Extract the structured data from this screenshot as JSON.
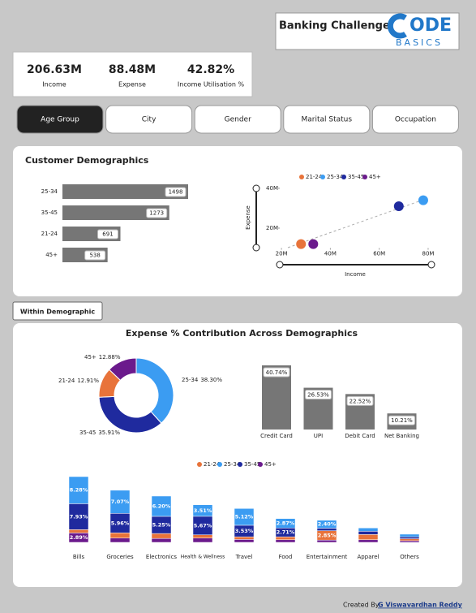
{
  "header": {
    "title": "Banking Challenge",
    "logo": "ODE",
    "logo_sub": "BASICS"
  },
  "kpis": [
    {
      "value": "206.63M",
      "label": "Income"
    },
    {
      "value": "88.48M",
      "label": "Expense"
    },
    {
      "value": "42.82%",
      "label": "Income Utilisation %"
    }
  ],
  "tabs": [
    "Age Group",
    "City",
    "Gender",
    "Marital Status",
    "Occupation"
  ],
  "button": "Within Demographic",
  "footer": {
    "text": "Created By:",
    "author": "G Viswavardhan Reddy"
  },
  "chart_data": [
    {
      "type": "hbar",
      "title": "Customer Demographics",
      "categories": [
        "25-34",
        "35-45",
        "21-24",
        "45+"
      ],
      "values": [
        1498,
        1273,
        691,
        538
      ],
      "color": "#767676"
    },
    {
      "type": "scatter",
      "x_label": "Income",
      "y_label": "Expense",
      "xlim": [
        12,
        82
      ],
      "ylim": [
        10,
        42
      ],
      "xticks": [
        {
          "value": 20,
          "label": "20M"
        },
        {
          "value": 40,
          "label": "40M"
        },
        {
          "value": 60,
          "label": "60M"
        },
        {
          "value": 80,
          "label": "80M"
        }
      ],
      "yticks": [
        {
          "value": 20,
          "label": "20M"
        },
        {
          "value": 40,
          "label": "40M"
        }
      ],
      "series": [
        {
          "name": "21-24",
          "color": "#e8733a",
          "x": [
            28
          ],
          "values": [
            12
          ]
        },
        {
          "name": "25-34",
          "color": "#3b9cf2",
          "x": [
            78
          ],
          "values": [
            34
          ]
        },
        {
          "name": "35-45",
          "color": "#1f2a9e",
          "x": [
            68
          ],
          "values": [
            31
          ]
        },
        {
          "name": "45+",
          "color": "#6b1a8c",
          "x": [
            33
          ],
          "values": [
            12
          ]
        }
      ]
    },
    {
      "type": "donut",
      "title": "Expense % Contribution Across Demographics",
      "categories": [
        "25-34",
        "35-45",
        "21-24",
        "45+"
      ],
      "values": [
        38.3,
        35.91,
        12.91,
        12.88
      ],
      "value_labels": [
        "38.30%",
        "35.91%",
        "12.91%",
        "12.88%"
      ],
      "colors": [
        "#3b9cf2",
        "#1f2a9e",
        "#e8733a",
        "#6b1a8c"
      ]
    },
    {
      "type": "bar",
      "categories": [
        "Credit Card",
        "UPI",
        "Debit Card",
        "Net Banking"
      ],
      "values": [
        40.74,
        26.53,
        22.52,
        10.21
      ],
      "value_labels": [
        "40.74%",
        "26.53%",
        "22.52%",
        "10.21%"
      ],
      "color": "#767676"
    },
    {
      "type": "ribbon",
      "categories": [
        "Bills",
        "Groceries",
        "Electronics",
        "Health & Wellness",
        "Travel",
        "Food",
        "Entertainment",
        "Apparel",
        "Others"
      ],
      "series": [
        {
          "name": "21-24",
          "color": "#e8733a",
          "values": [
            1.0,
            1.6,
            1.5,
            1.0,
            0.8,
            0.9,
            2.85,
            1.6,
            0.6
          ],
          "value_labels": [
            null,
            null,
            null,
            null,
            null,
            null,
            "2.85%",
            null,
            null
          ]
        },
        {
          "name": "25-34",
          "color": "#3b9cf2",
          "values": [
            8.28,
            7.07,
            6.2,
            3.51,
            5.12,
            2.87,
            2.4,
            1.0,
            0.8
          ],
          "value_labels": [
            "8.28%",
            "7.07%",
            "6.20%",
            "3.51%",
            "5.12%",
            "2.87%",
            "2.40%",
            null,
            null
          ]
        },
        {
          "name": "35-45",
          "color": "#1f2a9e",
          "values": [
            7.93,
            5.96,
            5.25,
            5.67,
            3.53,
            2.71,
            0.8,
            1.0,
            0.6
          ],
          "value_labels": [
            "7.93%",
            "5.96%",
            "5.25%",
            "5.67%",
            "3.53%",
            "2.71%",
            null,
            null,
            null
          ]
        },
        {
          "name": "45+",
          "color": "#6b1a8c",
          "values": [
            2.89,
            1.3,
            1.2,
            1.3,
            0.9,
            0.8,
            0.7,
            0.8,
            0.5
          ],
          "value_labels": [
            "2.89%",
            null,
            null,
            null,
            null,
            null,
            null,
            null,
            null
          ]
        }
      ]
    }
  ]
}
